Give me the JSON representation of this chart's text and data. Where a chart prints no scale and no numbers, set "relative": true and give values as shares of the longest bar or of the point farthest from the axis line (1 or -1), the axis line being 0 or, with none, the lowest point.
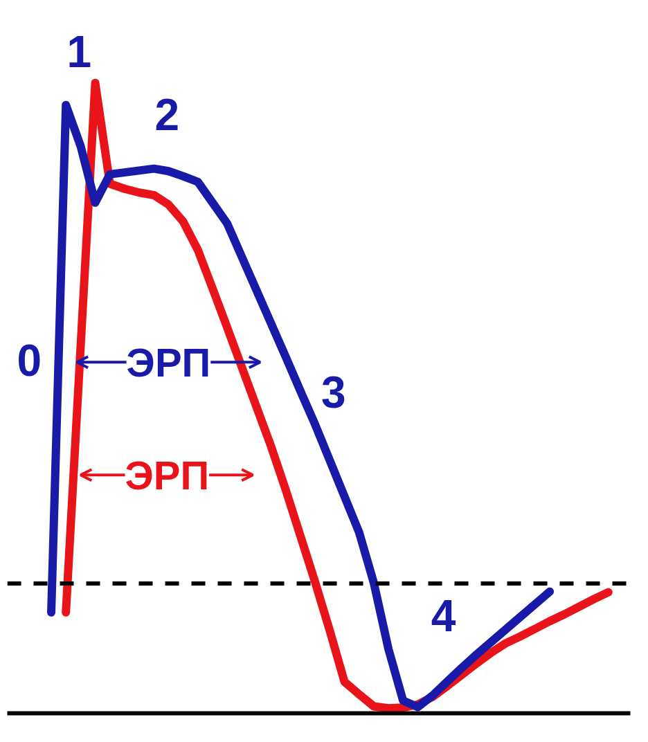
{
  "chart_data": {
    "type": "line",
    "relative": true,
    "grid": false,
    "categories": [
      null,
      null,
      null,
      null,
      null,
      null,
      null,
      null,
      null,
      null,
      null,
      null,
      null,
      null,
      null,
      null,
      null,
      null,
      null,
      null,
      null,
      null,
      null,
      null,
      null,
      null,
      null,
      null,
      null,
      null,
      null,
      null,
      null,
      null,
      null,
      null,
      null,
      null,
      null,
      null
    ],
    "series": [
      {
        "color": "#e8141a",
        "values": [
          null,
          0.16,
          0.58,
          1.0,
          0.84,
          0.832,
          0.826,
          0.822,
          0.807,
          0.78,
          0.735,
          0.674,
          0.612,
          0.549,
          0.486,
          0.423,
          0.354,
          0.281,
          0.208,
          0.131,
          0.05,
          0.03,
          0.011,
          0.008,
          0.009,
          0.014,
          0.026,
          0.043,
          0.061,
          0.079,
          0.096,
          0.111,
          0.122,
          0.134,
          0.146,
          0.157,
          0.169,
          0.181,
          0.192,
          null
        ]
      },
      {
        "color": "#1a1aa8",
        "values": [
          0.16,
          0.965,
          0.9,
          0.81,
          0.855,
          0.858,
          0.861,
          0.864,
          0.86,
          0.852,
          0.843,
          0.81,
          0.777,
          0.724,
          0.671,
          0.618,
          0.565,
          0.511,
          0.458,
          0.401,
          0.344,
          0.287,
          0.207,
          0.102,
          0.02,
          0.01,
          0.028,
          0.05,
          0.072,
          0.093,
          0.113,
          0.133,
          0.153,
          0.173,
          0.193,
          null,
          null,
          null,
          null,
          null
        ]
      }
    ],
    "ref_lines": [
      {
        "axis": "y",
        "value": 0.206,
        "color": "#000000",
        "line_style": "dashed"
      }
    ],
    "annotations": [
      "0",
      "1",
      "2",
      "3",
      "4",
      "ЭРП",
      "ЭРП"
    ]
  }
}
